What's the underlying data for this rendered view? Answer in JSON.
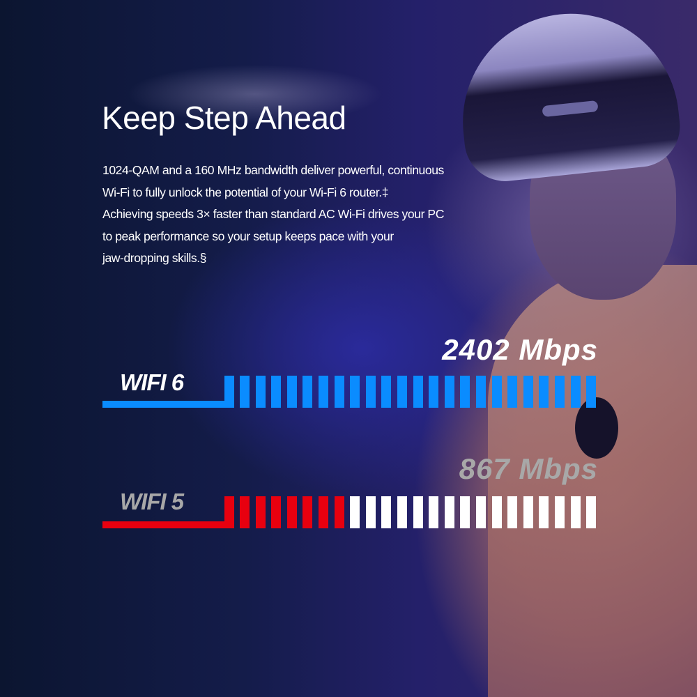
{
  "headline": "Keep Step Ahead",
  "description": [
    "1024-QAM and a 160 MHz bandwidth deliver powerful, continuous",
    "Wi-Fi to fully unlock the potential of your Wi-Fi 6 router.‡",
    "Achieving speeds 3× faster than standard AC Wi-Fi drives your PC",
    "to peak performance so your setup keeps pace with your",
    "jaw-dropping skills.§"
  ],
  "comparison": {
    "total_segments": 23,
    "wifi6": {
      "label": "WIFI 6",
      "speed": "2402 Mbps",
      "filled_segments": 23,
      "color": "#0a8cff",
      "label_color": "#ffffff",
      "speed_color": "#ffffff"
    },
    "wifi5": {
      "label": "WIFI 5",
      "speed": "867 Mbps",
      "filled_segments": 7,
      "color": "#e8000f",
      "empty_color": "#ffffff",
      "label_color": "#a8a8a8",
      "speed_color": "#a8a8a8"
    }
  }
}
